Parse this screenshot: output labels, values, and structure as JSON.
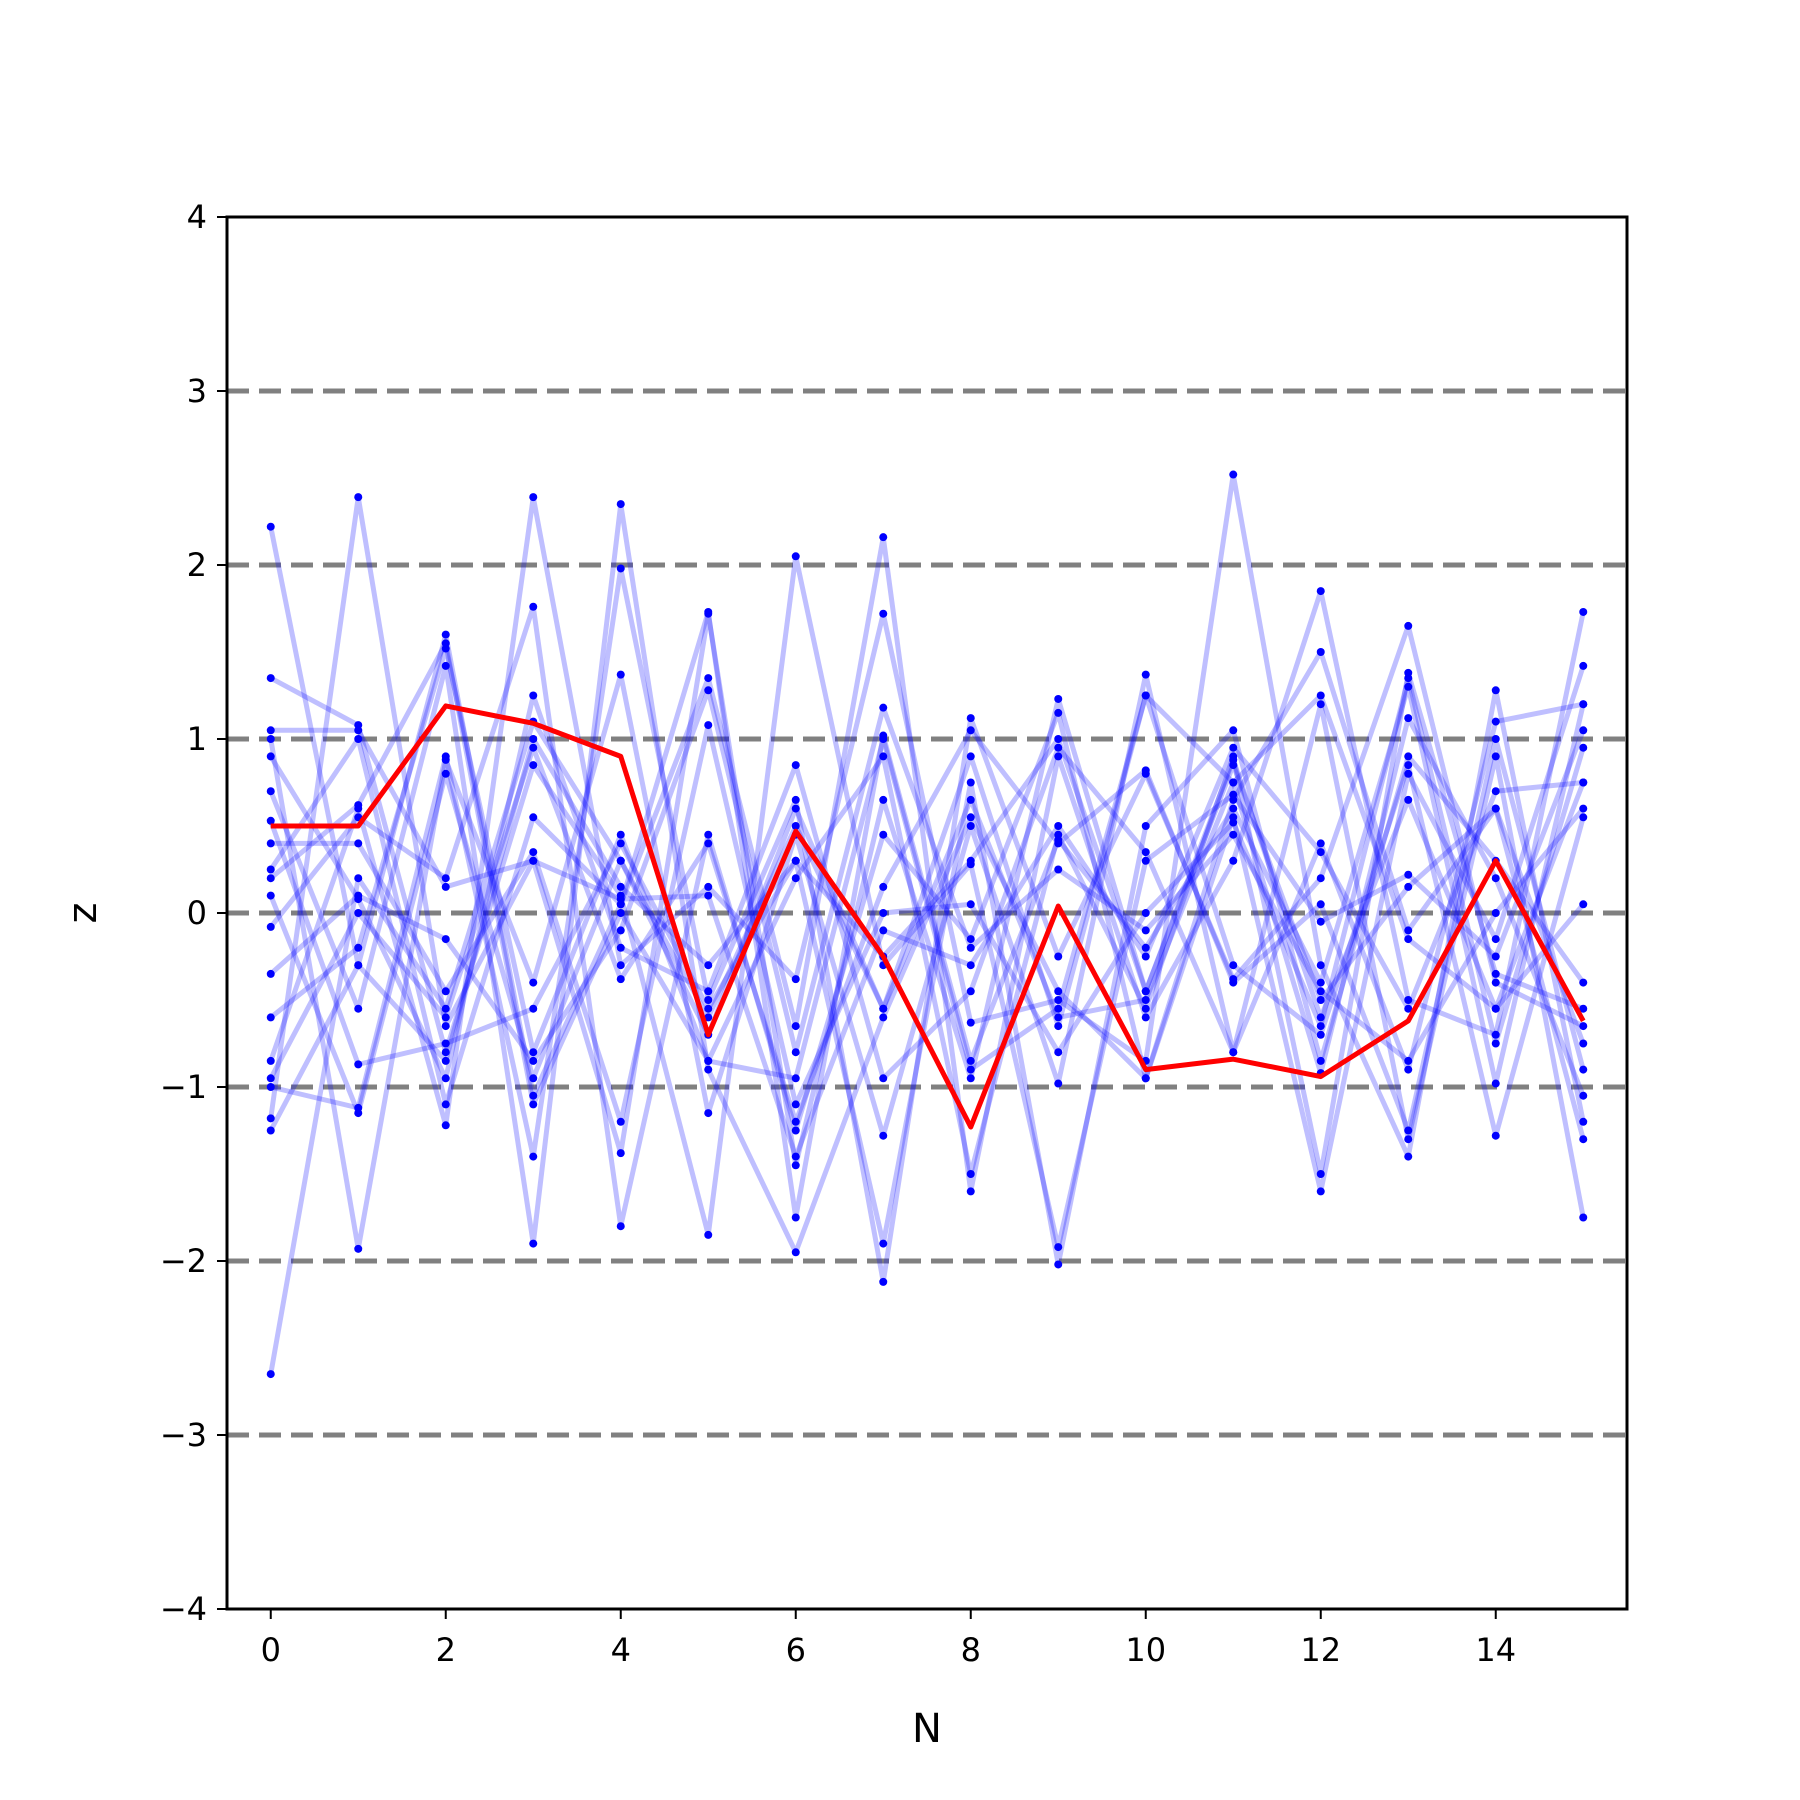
{
  "chart_data": {
    "type": "line",
    "xlabel": "N",
    "ylabel": "z",
    "xlim": [
      -0.5,
      15.5
    ],
    "ylim": [
      -4,
      4
    ],
    "x_ticks": [
      0,
      2,
      4,
      6,
      8,
      10,
      12,
      14
    ],
    "y_ticks": [
      -4,
      -3,
      -2,
      -1,
      0,
      1,
      2,
      3,
      4
    ],
    "x_tick_labels": [
      "0",
      "2",
      "4",
      "6",
      "8",
      "10",
      "12",
      "14"
    ],
    "y_tick_labels": [
      "−4",
      "−3",
      "−2",
      "−1",
      "0",
      "1",
      "2",
      "3",
      "4"
    ],
    "reference_lines": [
      -3,
      -2,
      -1,
      0,
      1,
      2,
      3
    ],
    "x": [
      0,
      1,
      2,
      3,
      4,
      5,
      6,
      7,
      8,
      9,
      10,
      11,
      12,
      13,
      14,
      15
    ],
    "colors": {
      "series": "#0000ff",
      "highlight": "#ff0000",
      "reference": "#808080",
      "axes": "#000000"
    },
    "series": [
      {
        "values": [
          2.22,
          -0.3,
          1.6,
          -1.05,
          0.05,
          1.73,
          -1.75,
          1.02,
          -0.85,
          0.42,
          -0.2,
          0.6,
          -0.4,
          1.3,
          -0.98,
          1.2
        ]
      },
      {
        "values": [
          -2.65,
          0.2,
          -0.55,
          1.1,
          0.3,
          -0.6,
          0.5,
          -0.55,
          0.9,
          -0.65,
          1.25,
          0.75,
          -0.92,
          1.12,
          0.2,
          -1.05
        ]
      },
      {
        "values": [
          1.35,
          1.08,
          -0.8,
          0.85,
          0.1,
          -1.85,
          2.05,
          -0.3,
          0.28,
          -1.92,
          0.3,
          0.68,
          -0.05,
          0.22,
          -0.25,
          1.05
        ]
      },
      {
        "values": [
          -1.18,
          2.39,
          -0.65,
          0.3,
          -1.38,
          1.72,
          -1.45,
          0.65,
          -0.95,
          1.23,
          -0.45,
          0.88,
          -0.6,
          0.65,
          -0.55,
          0.75
        ]
      },
      {
        "values": [
          1.0,
          -1.93,
          0.88,
          -0.4,
          1.37,
          -1.15,
          0.45,
          -1.28,
          0.5,
          -0.98,
          1.37,
          -0.8,
          1.2,
          -1.3,
          0.9,
          -1.75
        ]
      },
      {
        "values": [
          -0.85,
          0.6,
          -1.22,
          2.39,
          -0.3,
          0.15,
          -0.38,
          1.72,
          -0.63,
          -0.5,
          -0.85,
          2.52,
          -0.3,
          -1.4,
          1.28,
          -1.2
        ]
      },
      {
        "values": [
          0.7,
          -0.55,
          1.42,
          -1.9,
          2.35,
          -0.9,
          -1.95,
          -0.6,
          0.55,
          -0.45,
          -0.95,
          0.65,
          1.5,
          -0.1,
          0.6,
          -1.3
        ]
      },
      {
        "values": [
          0.25,
          1.0,
          -1.1,
          0.55,
          0.05,
          1.35,
          -0.65,
          2.16,
          -1.6,
          0.9,
          -0.6,
          0.3,
          1.85,
          -0.5,
          -0.7,
          1.73
        ]
      },
      {
        "values": [
          -1.0,
          -1.12,
          0.9,
          -1.4,
          1.98,
          -0.5,
          0.65,
          -2.12,
          1.12,
          -0.25,
          0.8,
          -0.38,
          0.2,
          1.65,
          -0.4,
          -0.65
        ]
      },
      {
        "values": [
          -0.08,
          0.55,
          0.2,
          1.76,
          -1.8,
          0.45,
          -1.25,
          0.45,
          -0.15,
          1.15,
          -0.95,
          0.55,
          -1.6,
          0.8,
          -0.15,
          1.42
        ]
      },
      {
        "values": [
          0.53,
          -0.87,
          -0.75,
          -0.55,
          0.4,
          -0.55,
          0.3,
          -1.9,
          0.75,
          -2.02,
          0.5,
          1.05,
          -0.85,
          0.9,
          0.3,
          -0.4
        ]
      },
      {
        "values": [
          -0.35,
          0.1,
          -0.15,
          -0.85,
          -0.1,
          1.28,
          -0.8,
          1.18,
          -0.2,
          0.25,
          -0.1,
          0.45,
          -0.45,
          -0.85,
          0.0,
          0.6
        ]
      },
      {
        "values": [
          0.9,
          0.08,
          -0.95,
          1.25,
          -0.2,
          -0.45,
          0.85,
          -0.95,
          -0.45,
          0.95,
          0.35,
          -0.8,
          0.4,
          -0.9,
          1.1,
          1.2
        ]
      },
      {
        "values": [
          -0.6,
          -0.2,
          1.52,
          -0.8,
          0.45,
          -0.85,
          0.2,
          0.9,
          -1.5,
          0.45,
          -0.55,
          0.9,
          -1.5,
          1.38,
          -0.35,
          -0.55
        ]
      },
      {
        "values": [
          0.4,
          0.4,
          -0.45,
          0.35,
          -1.2,
          1.08,
          -1.1,
          0.0,
          0.05,
          -0.8,
          0.0,
          0.52,
          -0.65,
          1.35,
          -0.75,
          0.95
        ]
      },
      {
        "values": [
          0.1,
          -1.15,
          0.8,
          -0.95,
          0.3,
          -0.7,
          0.6,
          -0.55,
          0.65,
          -0.6,
          -0.5,
          0.75,
          1.25,
          -0.15,
          -0.55,
          0.05
        ]
      },
      {
        "values": [
          -0.95,
          0.0,
          -0.6,
          0.95,
          -0.38,
          0.4,
          -1.2,
          0.15,
          1.05,
          0.4,
          0.82,
          -0.4,
          0.05,
          -1.25,
          1.0,
          -0.9
        ]
      },
      {
        "values": [
          0.2,
          0.62,
          1.55,
          -1.1,
          0.0,
          -0.85,
          -0.95,
          1.0,
          -0.9,
          -0.55,
          1.25,
          -0.3,
          -0.7,
          0.85,
          -1.28,
          0.55
        ]
      },
      {
        "values": [
          -1.25,
          -0.3,
          -0.85,
          1.0,
          0.15,
          -0.3,
          0.3,
          -0.25,
          0.3,
          1.0,
          -0.45,
          0.85,
          -0.5,
          0.15,
          0.6,
          -0.75
        ]
      },
      {
        "values": [
          1.05,
          1.05,
          0.15,
          0.3,
          0.08,
          0.1,
          -1.4,
          -0.1,
          -0.3,
          0.5,
          -0.25,
          0.95,
          0.35,
          -0.55,
          0.7,
          0.75
        ]
      }
    ],
    "highlight_series": {
      "values": [
        0.5,
        0.5,
        1.19,
        1.09,
        0.9,
        -0.7,
        0.47,
        -0.25,
        -1.23,
        0.04,
        -0.9,
        -0.84,
        -0.94,
        -0.62,
        0.3,
        -0.62
      ]
    }
  }
}
